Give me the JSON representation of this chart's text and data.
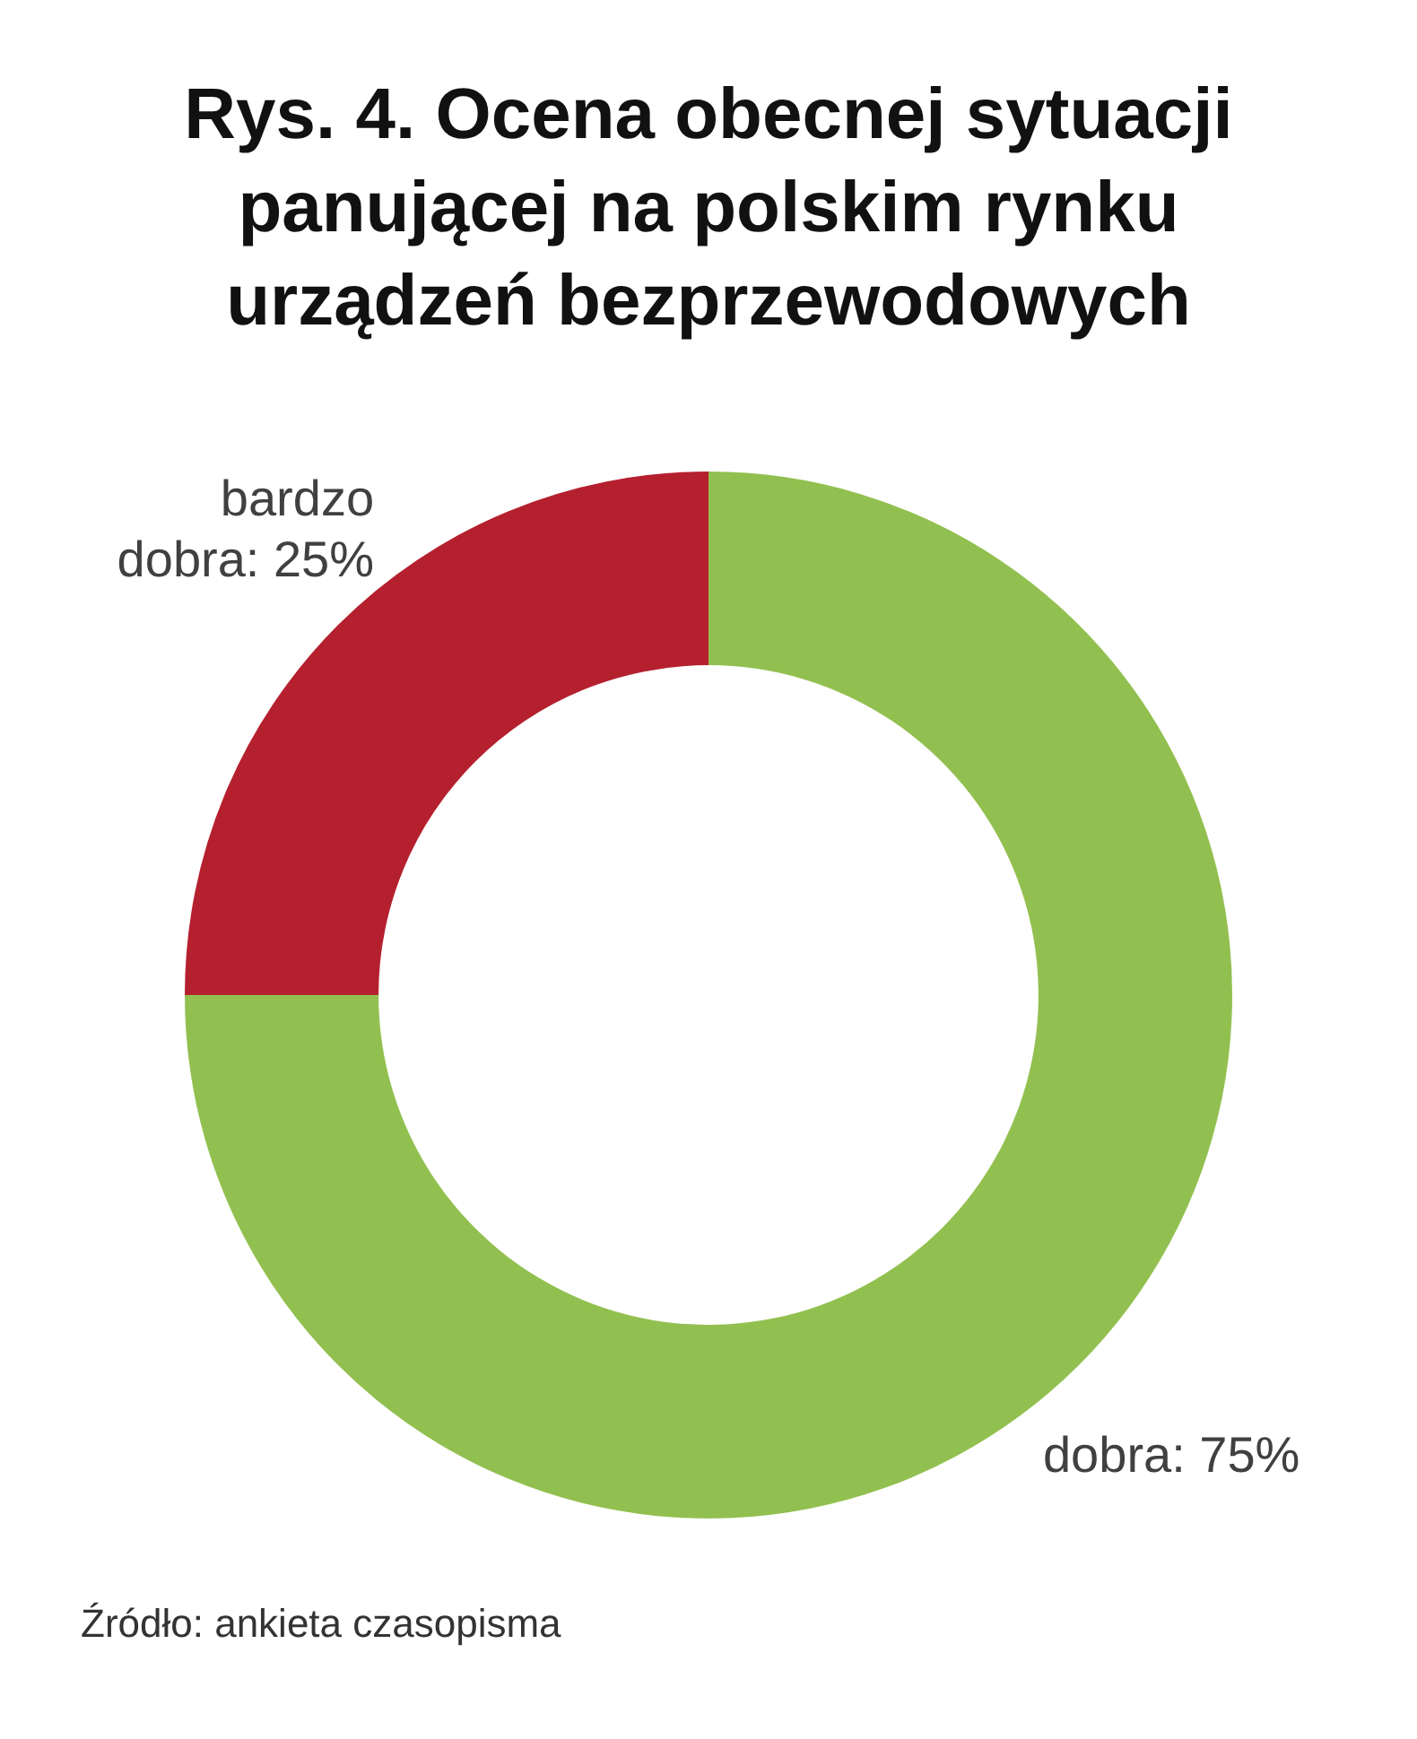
{
  "chart_data": {
    "type": "donut",
    "title": "Rys. 4. Ocena obecnej sytuacji panującej na polskim rynku urządzeń bezprzewodowych",
    "categories": [
      "dobra",
      "bardzo dobra"
    ],
    "values": [
      75,
      25
    ],
    "colors": [
      "#92c050",
      "#b5202e"
    ],
    "value_labels": [
      "75%",
      "25%"
    ],
    "annotations": [
      "Źródło: ankieta czasopisma"
    ]
  }
}
